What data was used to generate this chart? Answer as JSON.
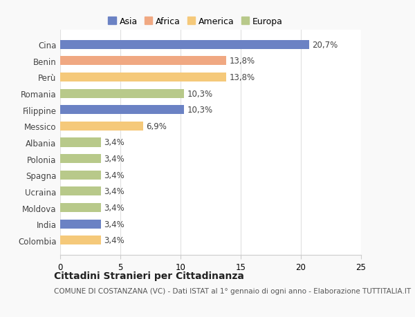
{
  "categories": [
    "Colombia",
    "India",
    "Moldova",
    "Ucraina",
    "Spagna",
    "Polonia",
    "Albania",
    "Messico",
    "Filippine",
    "Romania",
    "Perù",
    "Benin",
    "Cina"
  ],
  "values": [
    3.4,
    3.4,
    3.4,
    3.4,
    3.4,
    3.4,
    3.4,
    6.9,
    10.3,
    10.3,
    13.8,
    13.8,
    20.7
  ],
  "labels": [
    "3,4%",
    "3,4%",
    "3,4%",
    "3,4%",
    "3,4%",
    "3,4%",
    "3,4%",
    "6,9%",
    "10,3%",
    "10,3%",
    "13,8%",
    "13,8%",
    "20,7%"
  ],
  "colors": [
    "#f5c97a",
    "#6b82c4",
    "#b8c98a",
    "#b8c98a",
    "#b8c98a",
    "#b8c98a",
    "#b8c98a",
    "#f5c97a",
    "#6b82c4",
    "#b8c98a",
    "#f5c97a",
    "#f0a882",
    "#6b82c4"
  ],
  "continent_labels": [
    "Asia",
    "Africa",
    "America",
    "Europa"
  ],
  "continent_colors": [
    "#6b82c4",
    "#f0a882",
    "#f5c97a",
    "#b8c98a"
  ],
  "title": "Cittadini Stranieri per Cittadinanza",
  "subtitle": "COMUNE DI COSTANZANA (VC) - Dati ISTAT al 1° gennaio di ogni anno - Elaborazione TUTTITALIA.IT",
  "xlim": [
    0,
    25
  ],
  "xticks": [
    0,
    5,
    10,
    15,
    20,
    25
  ],
  "background_color": "#f9f9f9",
  "bar_background": "#ffffff",
  "grid_color": "#e0e0e0",
  "bar_height": 0.55,
  "label_fontsize": 8.5,
  "ytick_fontsize": 8.5,
  "xtick_fontsize": 8.5,
  "title_fontsize": 10,
  "subtitle_fontsize": 7.5
}
